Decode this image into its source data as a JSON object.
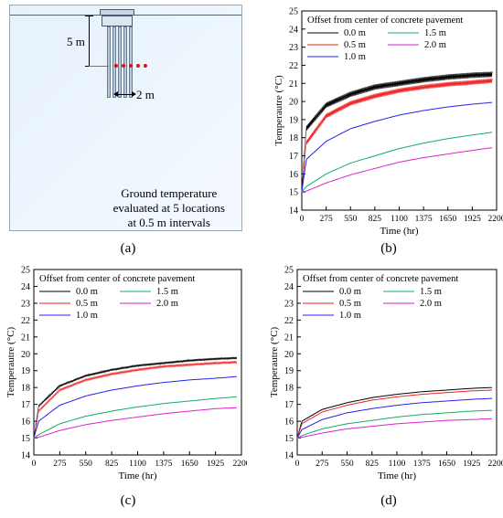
{
  "panel_a": {
    "depth_label": "5 m",
    "width_label": "2 m",
    "note_lines": [
      "Ground temperature",
      "evaluated at 5 locations",
      "at 0.5 m intervals"
    ]
  },
  "captions": [
    "(a)",
    "(b)",
    "(c)",
    "(d)"
  ],
  "colors": {
    "0.0 m": "#000000",
    "0.5 m": "#ee2222",
    "1.0 m": "#2222ee",
    "1.5 m": "#11aa66",
    "2.0 m": "#dd22cc"
  },
  "chart_data": [
    {
      "type": "line",
      "panel": "b",
      "legend_title": "Offset from center of concrete pavement",
      "xlabel": "Time (hr)",
      "ylabel": "Temperautre (°C)",
      "xlim": [
        0,
        2200
      ],
      "ylim": [
        14,
        25
      ],
      "xticks": [
        0,
        275,
        550,
        825,
        1100,
        1375,
        1650,
        1925,
        2200
      ],
      "yticks": [
        14,
        15,
        16,
        17,
        18,
        19,
        20,
        21,
        22,
        23,
        24,
        25
      ],
      "x": [
        0,
        50,
        275,
        550,
        825,
        1100,
        1375,
        1650,
        1925,
        2150
      ],
      "series": [
        {
          "name": "0.0 m",
          "values": [
            15.0,
            18.5,
            19.8,
            20.4,
            20.8,
            21.0,
            21.2,
            21.35,
            21.45,
            21.5
          ],
          "oscillation": 0.3
        },
        {
          "name": "0.5 m",
          "values": [
            15.0,
            17.7,
            19.2,
            19.9,
            20.3,
            20.6,
            20.8,
            20.95,
            21.05,
            21.15
          ],
          "oscillation": 0.25
        },
        {
          "name": "1.0 m",
          "values": [
            15.0,
            16.8,
            17.8,
            18.5,
            18.9,
            19.25,
            19.5,
            19.7,
            19.85,
            19.95
          ],
          "oscillation": 0
        },
        {
          "name": "1.5 m",
          "values": [
            15.0,
            15.3,
            16.0,
            16.6,
            17.0,
            17.4,
            17.7,
            17.95,
            18.15,
            18.3
          ],
          "oscillation": 0
        },
        {
          "name": "2.0 m",
          "values": [
            15.0,
            15.05,
            15.5,
            15.95,
            16.3,
            16.65,
            16.9,
            17.1,
            17.3,
            17.45
          ],
          "oscillation": 0
        }
      ]
    },
    {
      "type": "line",
      "panel": "c",
      "legend_title": "Offset from center of concrete pavement",
      "xlabel": "Time (hr)",
      "ylabel": "Temperautre (°C)",
      "xlim": [
        0,
        2200
      ],
      "ylim": [
        14,
        25
      ],
      "xticks": [
        0,
        275,
        550,
        825,
        1100,
        1375,
        1650,
        1925,
        2200
      ],
      "yticks": [
        14,
        15,
        16,
        17,
        18,
        19,
        20,
        21,
        22,
        23,
        24,
        25
      ],
      "x": [
        0,
        50,
        275,
        550,
        825,
        1100,
        1375,
        1650,
        1925,
        2150
      ],
      "series": [
        {
          "name": "0.0 m",
          "values": [
            15.0,
            16.9,
            18.1,
            18.7,
            19.05,
            19.3,
            19.45,
            19.6,
            19.7,
            19.75
          ],
          "oscillation": 0.12
        },
        {
          "name": "0.5 m",
          "values": [
            15.0,
            16.6,
            17.85,
            18.45,
            18.8,
            19.05,
            19.25,
            19.35,
            19.45,
            19.5
          ],
          "oscillation": 0.1
        },
        {
          "name": "1.0 m",
          "values": [
            15.0,
            16.0,
            16.95,
            17.5,
            17.85,
            18.1,
            18.3,
            18.45,
            18.55,
            18.65
          ],
          "oscillation": 0
        },
        {
          "name": "1.5 m",
          "values": [
            15.0,
            15.2,
            15.85,
            16.3,
            16.6,
            16.85,
            17.05,
            17.2,
            17.35,
            17.45
          ],
          "oscillation": 0
        },
        {
          "name": "2.0 m",
          "values": [
            15.0,
            15.05,
            15.45,
            15.8,
            16.05,
            16.25,
            16.45,
            16.6,
            16.75,
            16.8
          ],
          "oscillation": 0
        }
      ]
    },
    {
      "type": "line",
      "panel": "d",
      "legend_title": "Offset from center of concrete pavement",
      "xlabel": "Time (hr)",
      "ylabel": "Temperautre (°C)",
      "xlim": [
        0,
        2200
      ],
      "ylim": [
        14,
        25
      ],
      "xticks": [
        0,
        275,
        550,
        825,
        1100,
        1375,
        1650,
        1925,
        2200
      ],
      "yticks": [
        14,
        15,
        16,
        17,
        18,
        19,
        20,
        21,
        22,
        23,
        24,
        25
      ],
      "x": [
        0,
        50,
        275,
        550,
        825,
        1100,
        1375,
        1650,
        1925,
        2150
      ],
      "series": [
        {
          "name": "0.0 m",
          "values": [
            15.0,
            16.0,
            16.7,
            17.1,
            17.4,
            17.6,
            17.75,
            17.85,
            17.95,
            18.0
          ],
          "oscillation": 0
        },
        {
          "name": "0.5 m",
          "values": [
            15.0,
            15.85,
            16.55,
            16.95,
            17.25,
            17.45,
            17.6,
            17.7,
            17.8,
            17.85
          ],
          "oscillation": 0
        },
        {
          "name": "1.0 m",
          "values": [
            15.0,
            15.5,
            16.1,
            16.5,
            16.75,
            16.95,
            17.1,
            17.2,
            17.3,
            17.35
          ],
          "oscillation": 0
        },
        {
          "name": "1.5 m",
          "values": [
            15.0,
            15.15,
            15.55,
            15.85,
            16.05,
            16.25,
            16.4,
            16.5,
            16.6,
            16.65
          ],
          "oscillation": 0
        },
        {
          "name": "2.0 m",
          "values": [
            15.0,
            15.05,
            15.3,
            15.55,
            15.7,
            15.85,
            15.95,
            16.05,
            16.1,
            16.15
          ],
          "oscillation": 0
        }
      ]
    }
  ]
}
